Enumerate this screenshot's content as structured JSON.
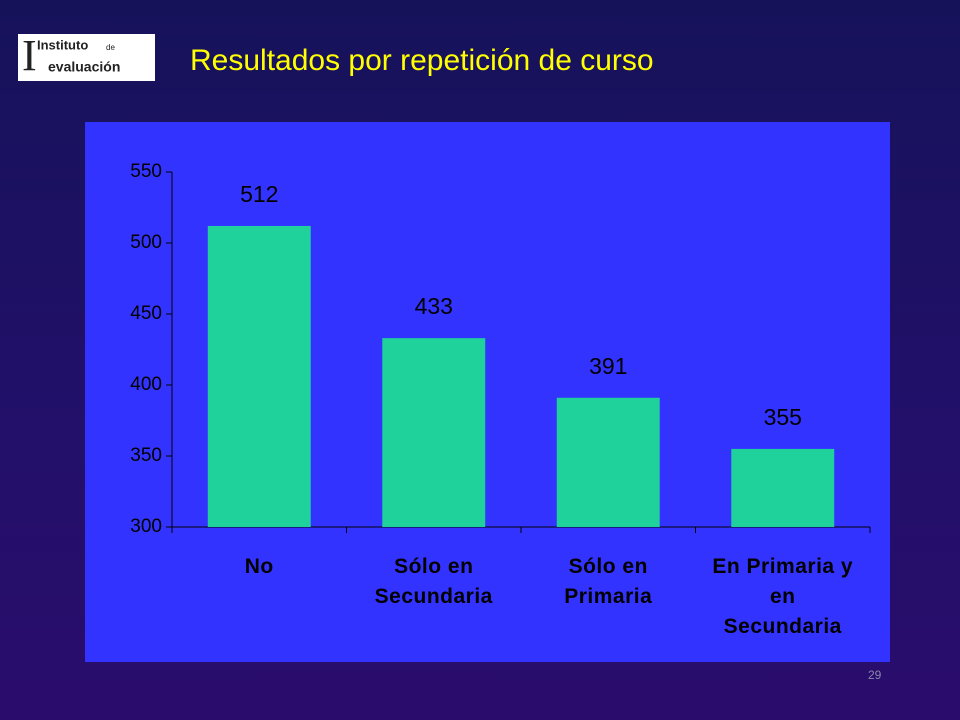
{
  "logo": {
    "name": "Instituto",
    "prep": "de",
    "sub": "evaluación"
  },
  "page_number": "29",
  "chart_data": {
    "type": "bar",
    "title": "Resultados por repetición de curso",
    "categories": [
      "No",
      "Sólo en\nSecundaria",
      "Sólo en\nPrimaria",
      "En Primaria y\nen\nSecundaria"
    ],
    "values": [
      512,
      433,
      391,
      355
    ],
    "color": "#1fd19a",
    "ylim": [
      300,
      550
    ],
    "yticks": [
      300,
      350,
      400,
      450,
      500,
      550
    ],
    "grid": false
  }
}
